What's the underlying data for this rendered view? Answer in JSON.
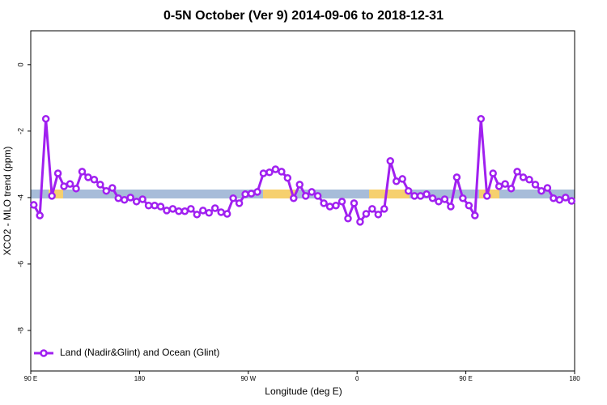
{
  "chart_data": {
    "type": "line",
    "title": "0-5N October (Ver 9)   2014-09-06 to 2018-12-31",
    "x_label": "Longitude (deg E)",
    "y_label": "XCO2 - MLO trend (ppm)",
    "xlim": [
      90,
      540
    ],
    "ylim": [
      -9.22,
      1.02
    ],
    "xticks": [
      {
        "value": 90,
        "label": "90 E"
      },
      180,
      {
        "value": 270,
        "label": "90 W"
      },
      {
        "value": 360,
        "label": "0"
      },
      {
        "value": 450,
        "label": "90 E"
      },
      {
        "value": 540,
        "label": "180"
      }
    ],
    "yticks": [
      0,
      -2,
      -4,
      -6,
      -8
    ],
    "legend_position": "bottom-left",
    "x": [
      92.5,
      97.5,
      102.5,
      107.5,
      112.5,
      117.5,
      122.5,
      127.5,
      132.5,
      137.5,
      142.5,
      147.5,
      152.5,
      157.5,
      162.5,
      167.5,
      172.5,
      177.5,
      182.5,
      187.5,
      192.5,
      197.5,
      202.5,
      207.5,
      212.5,
      217.5,
      222.5,
      227.5,
      232.5,
      237.5,
      242.5,
      247.5,
      252.5,
      257.5,
      262.5,
      267.5,
      272.5,
      277.5,
      282.5,
      287.5,
      292.5,
      297.5,
      302.5,
      307.5,
      312.5,
      317.5,
      322.5,
      327.5,
      332.5,
      337.5,
      342.5,
      347.5,
      352.5,
      357.5,
      362.5,
      367.5,
      372.5,
      377.5,
      382.5,
      387.5,
      392.5,
      397.5,
      402.5,
      407.5,
      412.5,
      417.5,
      422.5,
      427.5,
      432.5,
      437.5,
      442.5,
      447.5,
      452.5,
      457.5,
      462.5,
      467.5,
      472.5,
      477.5,
      482.5,
      487.5,
      492.5,
      497.5,
      502.5,
      507.5,
      512.5,
      517.5,
      522.5,
      527.5,
      532.5,
      537.5
    ],
    "series": [
      {
        "name": "Land (Nadir&Glint) and Ocean (Glint)",
        "color": "#a020f0",
        "values": [
          -4.22,
          -4.54,
          -1.63,
          -3.95,
          -3.27,
          -3.66,
          -3.59,
          -3.73,
          -3.22,
          -3.39,
          -3.46,
          -3.61,
          -3.8,
          -3.71,
          -4.02,
          -4.07,
          -4.0,
          -4.12,
          -4.05,
          -4.24,
          -4.24,
          -4.27,
          -4.39,
          -4.34,
          -4.41,
          -4.41,
          -4.34,
          -4.51,
          -4.39,
          -4.46,
          -4.32,
          -4.44,
          -4.49,
          -4.02,
          -4.17,
          -3.9,
          -3.88,
          -3.83,
          -3.27,
          -3.24,
          -3.15,
          -3.22,
          -3.41,
          -4.02,
          -3.61,
          -3.95,
          -3.83,
          -3.95,
          -4.17,
          -4.27,
          -4.24,
          -4.12,
          -4.63,
          -4.17,
          -4.73,
          -4.49,
          -4.34,
          -4.51,
          -4.34,
          -2.9,
          -3.51,
          -3.44,
          -3.8,
          -3.95,
          -3.95,
          -3.9,
          -4.02,
          -4.12,
          -4.05,
          -4.27,
          -3.39,
          -4.02,
          -4.24,
          -4.54,
          -1.63,
          -3.95,
          -3.27,
          -3.66,
          -3.59,
          -3.73,
          -3.22,
          -3.39,
          -3.46,
          -3.61,
          -3.8,
          -3.71,
          -4.02,
          -4.07,
          -4.0,
          -4.1
        ]
      }
    ]
  }
}
